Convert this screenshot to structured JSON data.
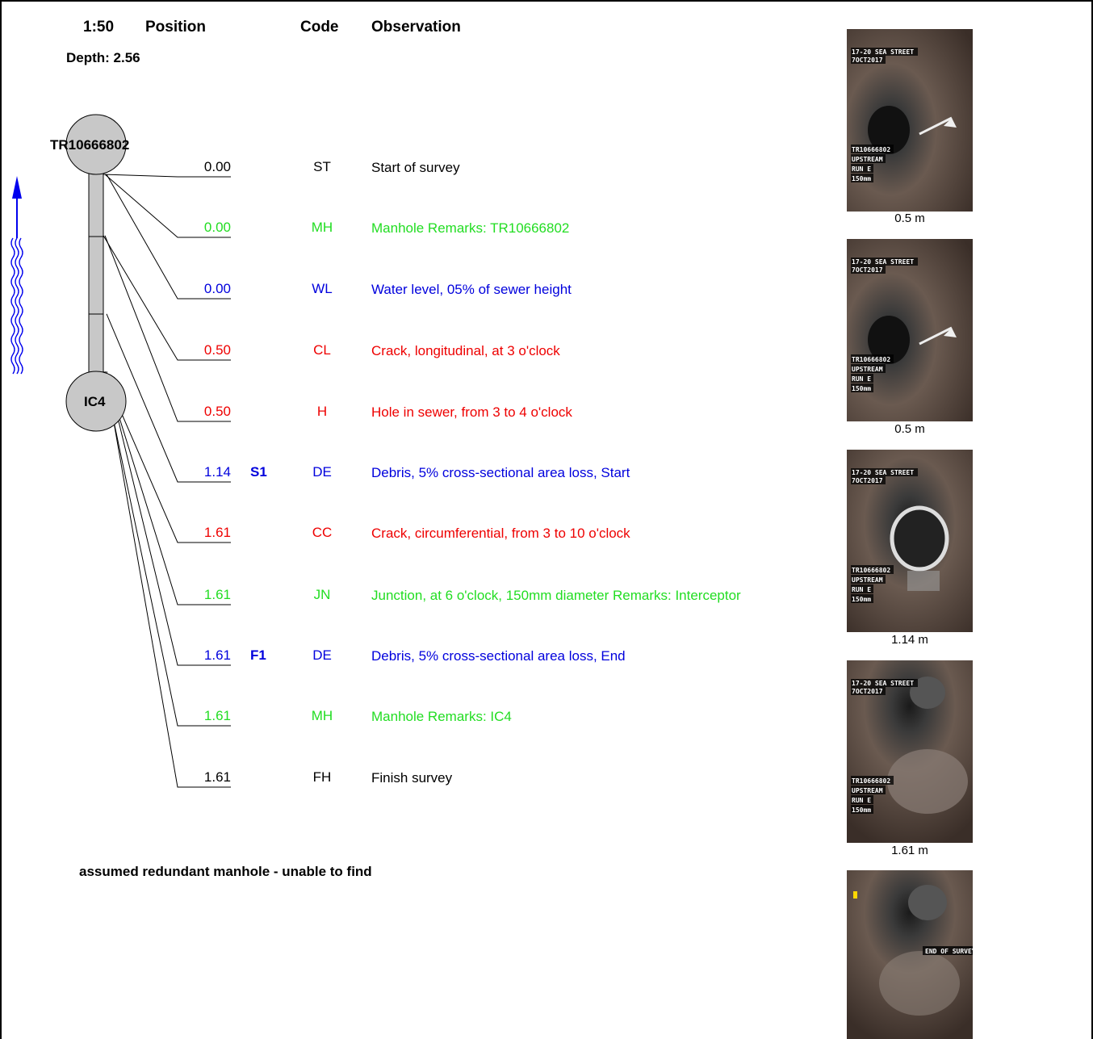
{
  "header": {
    "scale": "1:50",
    "position_label": "Position",
    "code_label": "Code",
    "observation_label": "Observation",
    "depth": "Depth: 2.56"
  },
  "manholes": {
    "start": "TR10666802",
    "finish": "IC4"
  },
  "flow_direction": "upstream",
  "observations": [
    {
      "position": "0.00",
      "cont": "",
      "code": "ST",
      "text": "Start of survey",
      "color": "#000000"
    },
    {
      "position": "0.00",
      "cont": "",
      "code": "MH",
      "text": "Manhole Remarks: TR10666802",
      "color": "#22dd22"
    },
    {
      "position": "0.00",
      "cont": "",
      "code": "WL",
      "text": "Water level, 05% of sewer height",
      "color": "#0000dd"
    },
    {
      "position": "0.50",
      "cont": "",
      "code": "CL",
      "text": "Crack, longitudinal, at 3 o'clock",
      "color": "#ee0000"
    },
    {
      "position": "0.50",
      "cont": "",
      "code": "H",
      "text": "Hole in sewer, from 3 to 4 o'clock",
      "color": "#ee0000"
    },
    {
      "position": "1.14",
      "cont": "S1",
      "code": "DE",
      "text": "Debris, 5% cross-sectional area loss, Start",
      "color": "#0000dd"
    },
    {
      "position": "1.61",
      "cont": "",
      "code": "CC",
      "text": "Crack, circumferential, from 3 to 10 o'clock",
      "color": "#ee0000"
    },
    {
      "position": "1.61",
      "cont": "",
      "code": "JN",
      "text": "Junction, at 6 o'clock, 150mm diameter Remarks: Interceptor",
      "color": "#22dd22"
    },
    {
      "position": "1.61",
      "cont": "F1",
      "code": "DE",
      "text": "Debris, 5% cross-sectional area loss, End",
      "color": "#0000dd"
    },
    {
      "position": "1.61",
      "cont": "",
      "code": "MH",
      "text": "Manhole Remarks: IC4",
      "color": "#22dd22"
    },
    {
      "position": "1.61",
      "cont": "",
      "code": "FH",
      "text": "Finish survey",
      "color": "#000000"
    }
  ],
  "remarks": "assumed redundant manhole - unable to find",
  "photos": [
    {
      "caption": "0.5 m",
      "overlay_top": [
        "17-20 SEA STREET",
        "7OCT2017"
      ],
      "overlay_bottom": [
        "TR10666802",
        "UPSTREAM",
        "RUN E",
        "150mm"
      ]
    },
    {
      "caption": "0.5 m",
      "overlay_top": [
        "17-20 SEA STREET",
        "7OCT2017"
      ],
      "overlay_bottom": [
        "TR10666802",
        "UPSTREAM",
        "RUN E",
        "150mm"
      ]
    },
    {
      "caption": "1.14 m",
      "overlay_top": [
        "17-20 SEA STREET",
        "7OCT2017"
      ],
      "overlay_bottom": [
        "TR10666802",
        "UPSTREAM",
        "RUN E",
        "150mm"
      ]
    },
    {
      "caption": "1.61 m",
      "overlay_top": [
        "17-20 SEA STREET",
        "7OCT2017"
      ],
      "overlay_bottom": [
        "TR10666802",
        "UPSTREAM",
        "RUN E",
        "150mm"
      ]
    },
    {
      "caption": "",
      "overlay_top": [],
      "overlay_bottom": [],
      "overlay_center": "END OF SURVEY"
    }
  ]
}
